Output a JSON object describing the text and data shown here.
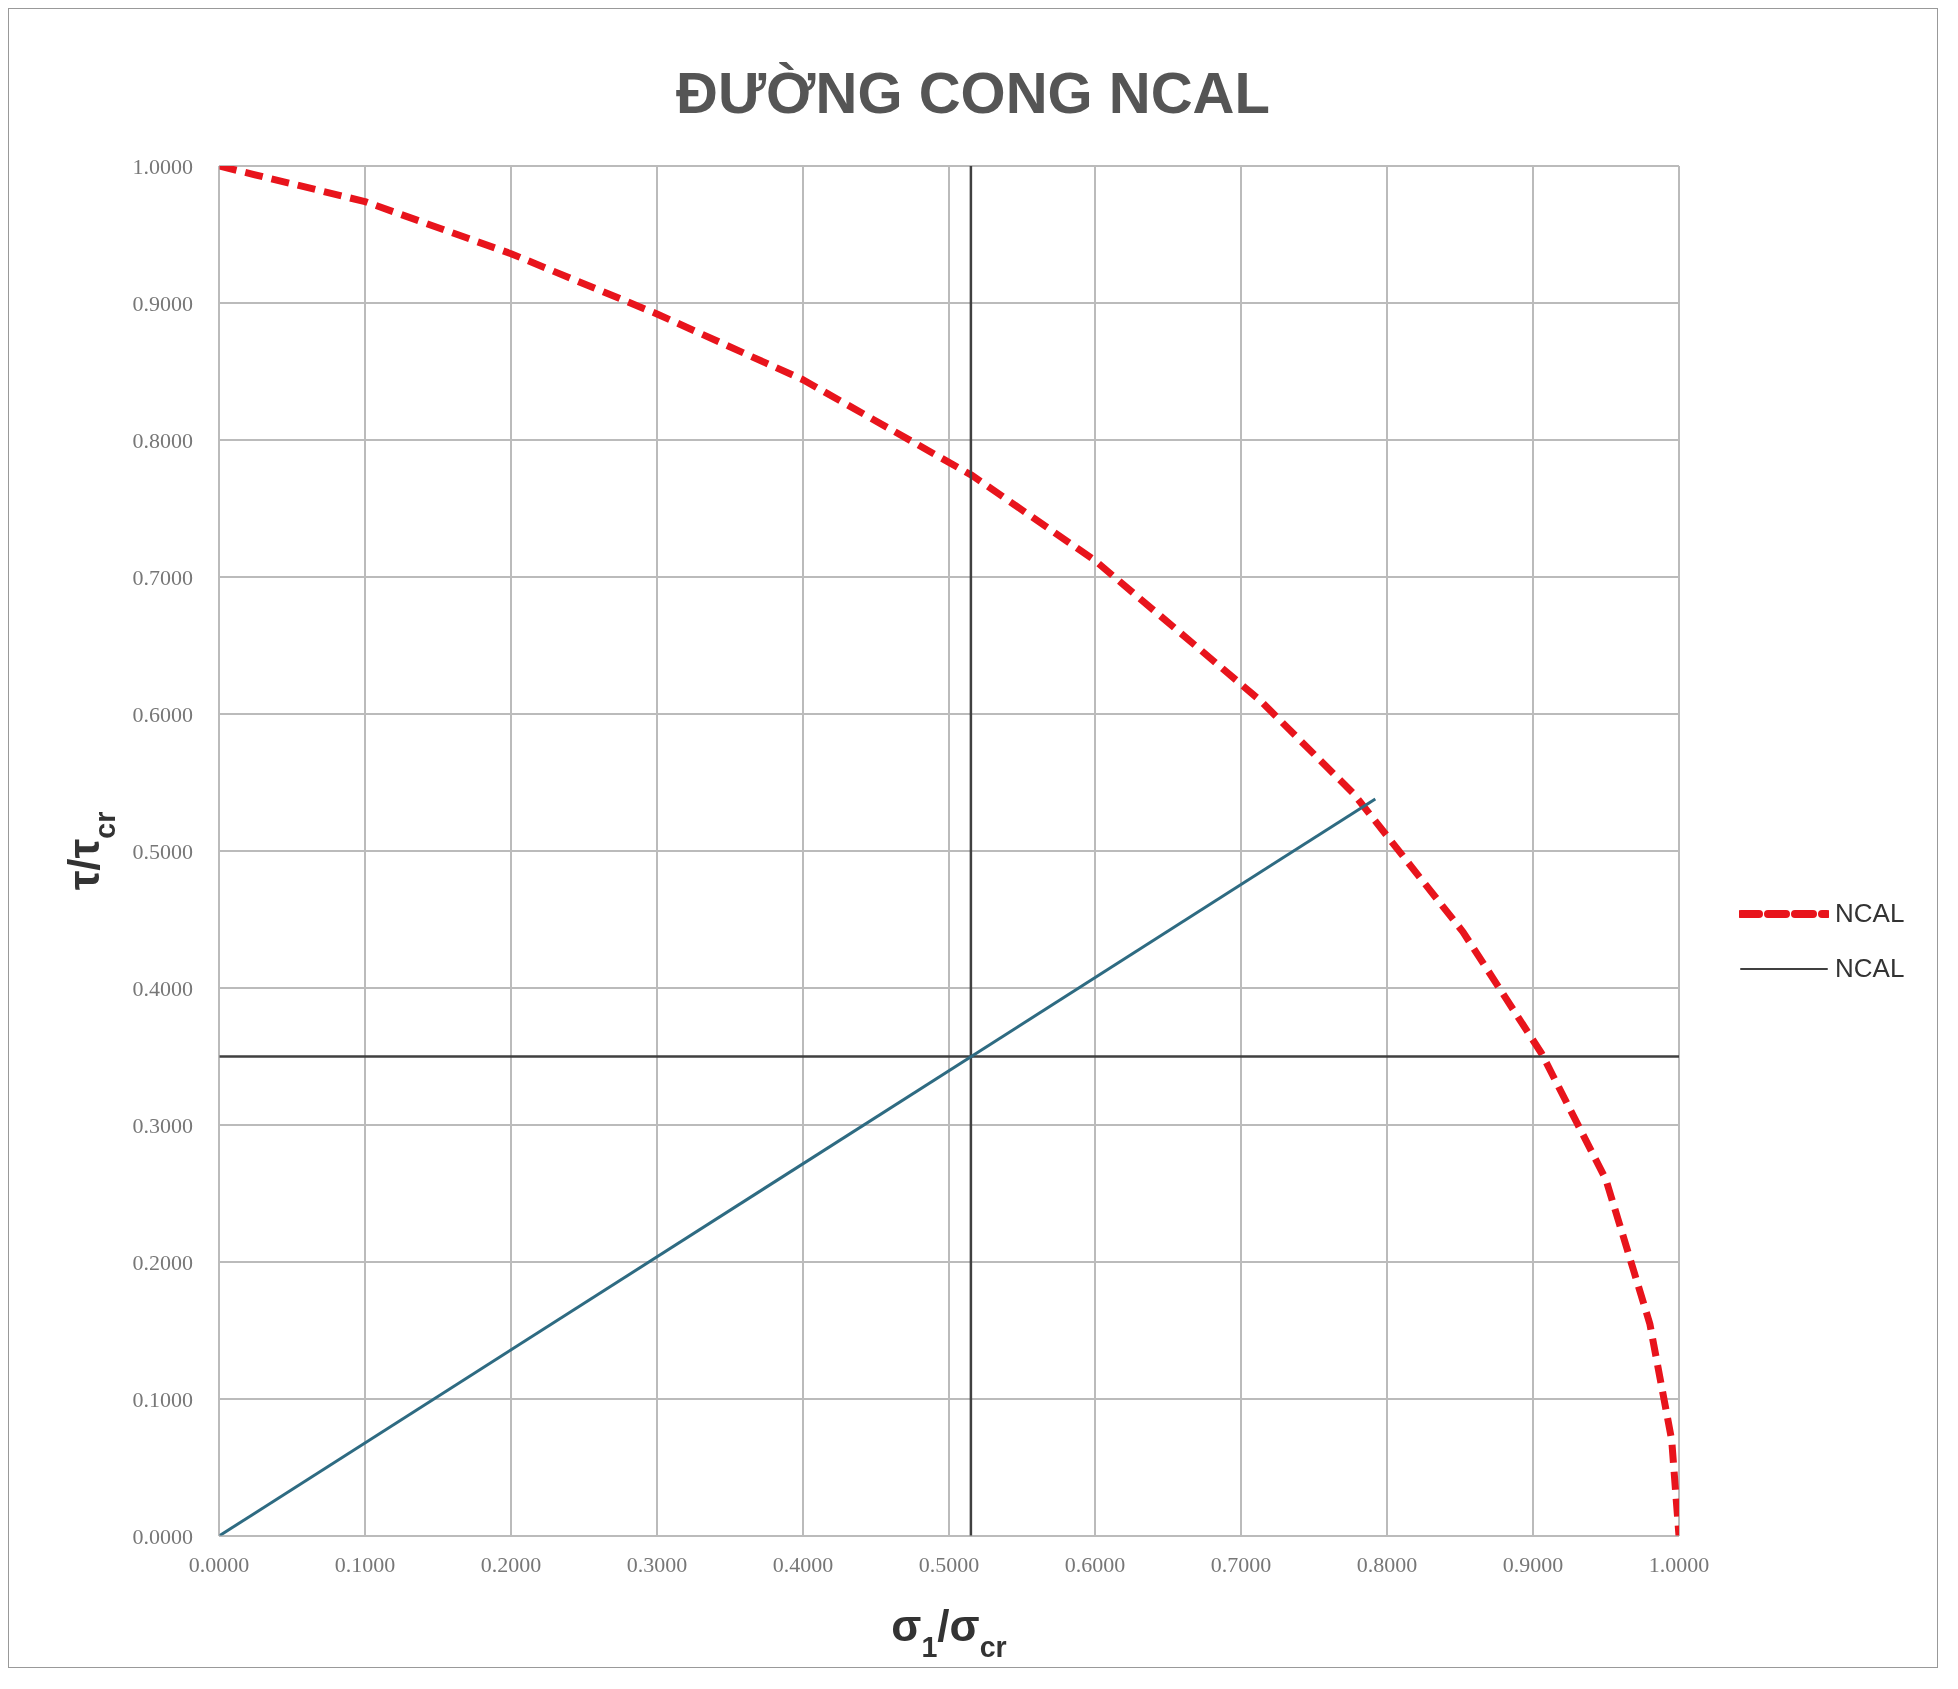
{
  "chart_data": {
    "type": "line",
    "title": "ĐƯỜNG CONG NCAL",
    "xlabel": "σ$_{1}$/σ$_{cr}$",
    "ylabel": "τ/τ$_{cr}$",
    "xlim": [
      0,
      1
    ],
    "ylim": [
      0,
      1
    ],
    "xticks": [
      {
        "value": 0,
        "label": "0.0000"
      },
      {
        "value": 0.1,
        "label": "0.1000"
      },
      {
        "value": 0.2,
        "label": "0.2000"
      },
      {
        "value": 0.3,
        "label": "0.3000"
      },
      {
        "value": 0.4,
        "label": "0.4000"
      },
      {
        "value": 0.5,
        "label": "0.5000"
      },
      {
        "value": 0.6,
        "label": "0.6000"
      },
      {
        "value": 0.7,
        "label": "0.7000"
      },
      {
        "value": 0.8,
        "label": "0.8000"
      },
      {
        "value": 0.9,
        "label": "0.9000"
      },
      {
        "value": 1,
        "label": "1.0000"
      }
    ],
    "yticks": [
      {
        "value": 0,
        "label": "0.0000"
      },
      {
        "value": 0.1,
        "label": "0.1000"
      },
      {
        "value": 0.2,
        "label": "0.2000"
      },
      {
        "value": 0.3,
        "label": "0.3000"
      },
      {
        "value": 0.4,
        "label": "0.4000"
      },
      {
        "value": 0.5,
        "label": "0.5000"
      },
      {
        "value": 0.6,
        "label": "0.6000"
      },
      {
        "value": 0.7,
        "label": "0.7000"
      },
      {
        "value": 0.8,
        "label": "0.8000"
      },
      {
        "value": 0.9,
        "label": "0.9000"
      },
      {
        "value": 1,
        "label": "1.0000"
      }
    ],
    "grid": true,
    "legend": "right",
    "marker": "none",
    "series": [
      {
        "name": "NCAL",
        "color": "#e8141c",
        "line_style": "dashed",
        "x": [
          0,
          0.1,
          0.2,
          0.3,
          0.4,
          0.516,
          0.6,
          0.713,
          0.777,
          0.852,
          0.906,
          0.95,
          0.98,
          0.995,
          1
        ],
        "values": [
          1,
          0.974,
          0.936,
          0.892,
          0.844,
          0.774,
          0.712,
          0.61,
          0.542,
          0.441,
          0.352,
          0.26,
          0.155,
          0.07,
          0
        ]
      },
      {
        "name": "NCAL",
        "color": "#404040",
        "line_style": "solid",
        "x": [
          0.515,
          0.515,
          null,
          0,
          1
        ],
        "values": [
          0,
          1,
          null,
          0.35,
          0.35
        ]
      },
      {
        "color": "#2e6b82",
        "line_style": "solid",
        "x": [
          0,
          0.792
        ],
        "values": [
          0,
          0.538
        ]
      }
    ]
  }
}
